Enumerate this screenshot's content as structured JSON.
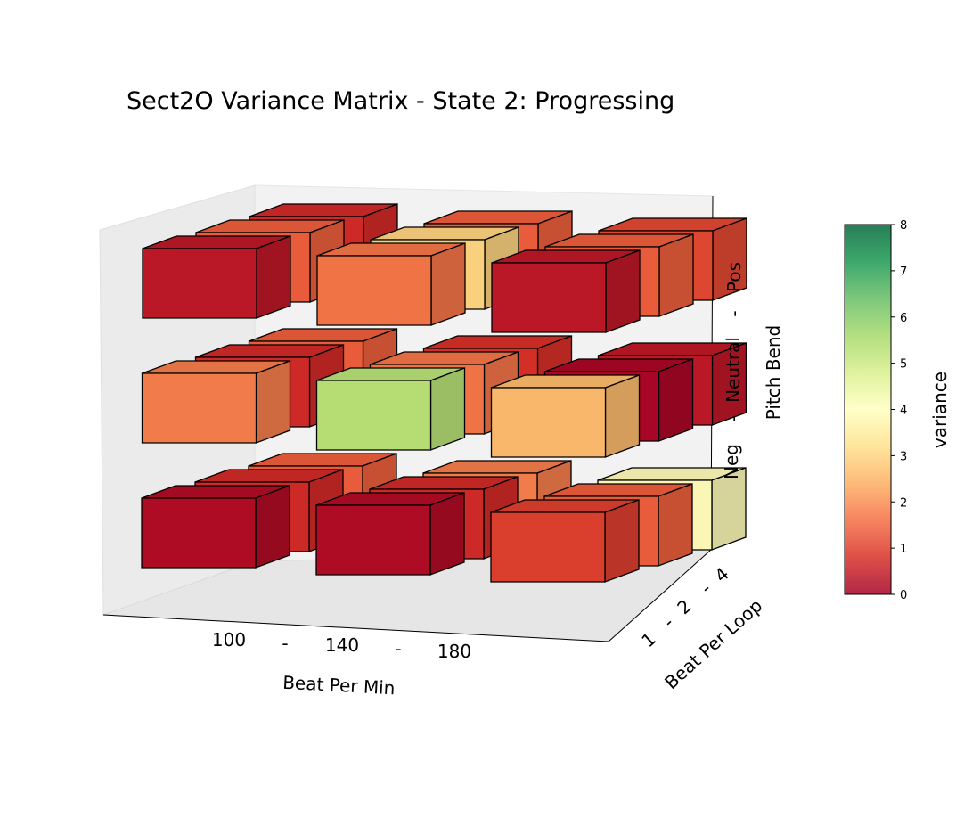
{
  "chart_data": {
    "type": "bar3d",
    "title": "Sect2O Variance Matrix - State 2: Progressing",
    "x_axis": {
      "label": "Beat Per Min",
      "ticks": [
        "100",
        "-",
        "140",
        "-",
        "180"
      ],
      "categories": [
        "100",
        "140",
        "180"
      ]
    },
    "y_axis": {
      "label": "Beat Per Loop",
      "ticks": [
        "1",
        "-",
        "2",
        "-",
        "4"
      ],
      "categories": [
        "1",
        "2",
        "4"
      ]
    },
    "z_axis": {
      "label": "Pitch Bend",
      "ticks": [
        "Neg",
        "-",
        "Neutral",
        "-",
        "Pos"
      ],
      "categories": [
        "Neg",
        "Neutral",
        "Pos"
      ]
    },
    "colorbar": {
      "label": "variance",
      "min": 0,
      "max": 8,
      "ticks": [
        "0",
        "1",
        "2",
        "3",
        "4",
        "5",
        "6",
        "7",
        "8"
      ],
      "colormap": "RdYlGn"
    },
    "cells": [
      {
        "bpm": "100",
        "loop": "1",
        "pitch": "Neg",
        "variance": 0.2
      },
      {
        "bpm": "100",
        "loop": "2",
        "pitch": "Neg",
        "variance": 0.7
      },
      {
        "bpm": "100",
        "loop": "4",
        "pitch": "Neg",
        "variance": 1.4
      },
      {
        "bpm": "140",
        "loop": "1",
        "pitch": "Neg",
        "variance": 0.2
      },
      {
        "bpm": "140",
        "loop": "2",
        "pitch": "Neg",
        "variance": 0.7
      },
      {
        "bpm": "140",
        "loop": "4",
        "pitch": "Neg",
        "variance": 1.8
      },
      {
        "bpm": "180",
        "loop": "1",
        "pitch": "Neg",
        "variance": 1.0
      },
      {
        "bpm": "180",
        "loop": "2",
        "pitch": "Neg",
        "variance": 1.4
      },
      {
        "bpm": "180",
        "loop": "4",
        "pitch": "Neg",
        "variance": 3.9
      },
      {
        "bpm": "100",
        "loop": "1",
        "pitch": "Neutral",
        "variance": 1.8
      },
      {
        "bpm": "100",
        "loop": "2",
        "pitch": "Neutral",
        "variance": 0.7
      },
      {
        "bpm": "100",
        "loop": "4",
        "pitch": "Neutral",
        "variance": 1.4
      },
      {
        "bpm": "140",
        "loop": "1",
        "pitch": "Neutral",
        "variance": 5.3
      },
      {
        "bpm": "140",
        "loop": "2",
        "pitch": "Neutral",
        "variance": 1.7
      },
      {
        "bpm": "140",
        "loop": "4",
        "pitch": "Neutral",
        "variance": 0.8
      },
      {
        "bpm": "180",
        "loop": "1",
        "pitch": "Neutral",
        "variance": 2.6
      },
      {
        "bpm": "180",
        "loop": "2",
        "pitch": "Neutral",
        "variance": 0.1
      },
      {
        "bpm": "180",
        "loop": "4",
        "pitch": "Neutral",
        "variance": 0.4
      },
      {
        "bpm": "100",
        "loop": "1",
        "pitch": "Pos",
        "variance": 0.4
      },
      {
        "bpm": "100",
        "loop": "2",
        "pitch": "Pos",
        "variance": 1.4
      },
      {
        "bpm": "100",
        "loop": "4",
        "pitch": "Pos",
        "variance": 0.7
      },
      {
        "bpm": "140",
        "loop": "1",
        "pitch": "Pos",
        "variance": 1.7
      },
      {
        "bpm": "140",
        "loop": "2",
        "pitch": "Pos",
        "variance": 3.0
      },
      {
        "bpm": "140",
        "loop": "4",
        "pitch": "Pos",
        "variance": 1.4
      },
      {
        "bpm": "180",
        "loop": "1",
        "pitch": "Pos",
        "variance": 0.4
      },
      {
        "bpm": "180",
        "loop": "2",
        "pitch": "Pos",
        "variance": 1.4
      },
      {
        "bpm": "180",
        "loop": "4",
        "pitch": "Pos",
        "variance": 1.1
      }
    ]
  }
}
